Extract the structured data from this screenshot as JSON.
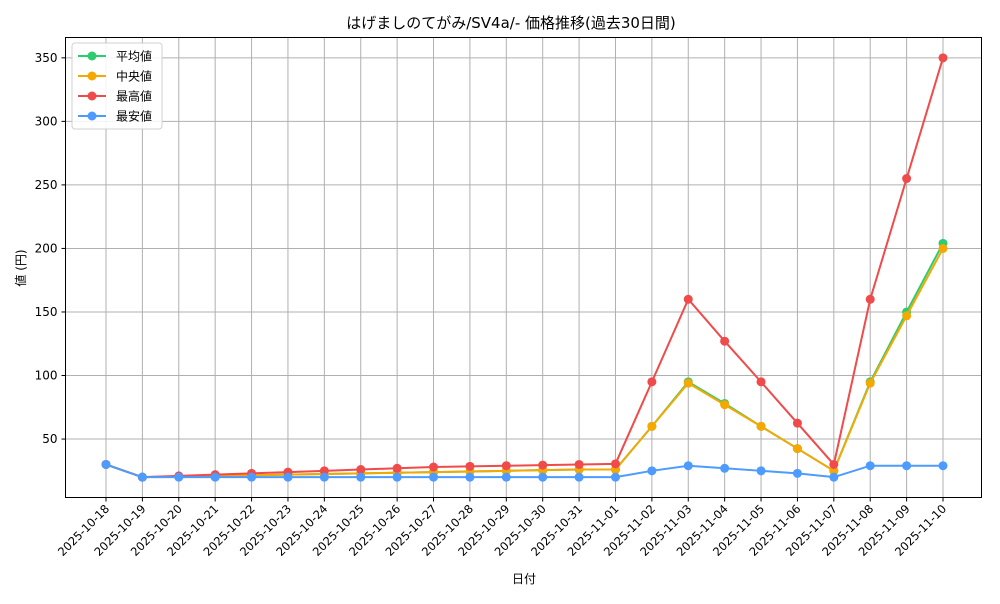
{
  "chart_data": {
    "type": "line",
    "title": "はげましのてがみ/SV4a/- 価格推移(過去30日間)",
    "xlabel": "日付",
    "ylabel": "値 (円)",
    "ylim": [
      4,
      366
    ],
    "yticks": [
      50,
      100,
      150,
      200,
      250,
      300,
      350
    ],
    "grid": true,
    "legend_position": "upper left",
    "categories": [
      "2025-10-18",
      "2025-10-19",
      "2025-10-20",
      "2025-10-21",
      "2025-10-22",
      "2025-10-23",
      "2025-10-24",
      "2025-10-25",
      "2025-10-26",
      "2025-10-27",
      "2025-10-28",
      "2025-10-29",
      "2025-10-30",
      "2025-10-31",
      "2025-11-01",
      "2025-11-02",
      "2025-11-03",
      "2025-11-04",
      "2025-11-05",
      "2025-11-06",
      "2025-11-07",
      "2025-11-08",
      "2025-11-09",
      "2025-11-10"
    ],
    "series": [
      {
        "name": "平均値",
        "color": "#2ecc71",
        "values": [
          30,
          20,
          20.5,
          21,
          21.5,
          22,
          22.5,
          23,
          23.5,
          24,
          24.5,
          25,
          25.5,
          26,
          26,
          60,
          95,
          78,
          60,
          42.5,
          25,
          95,
          150,
          204
        ]
      },
      {
        "name": "中央値",
        "color": "#f5a800",
        "values": [
          30,
          20,
          20.5,
          21,
          21.5,
          22,
          22.5,
          23,
          23.5,
          24,
          24.5,
          25,
          25.5,
          26,
          26,
          60,
          94,
          77,
          60,
          42.5,
          25,
          94,
          147,
          200
        ]
      },
      {
        "name": "最高値",
        "color": "#f04a4a",
        "values": [
          30,
          20,
          21,
          22,
          23,
          24,
          25,
          26,
          27,
          28,
          28.5,
          29,
          29.5,
          30,
          30.5,
          95,
          160,
          127,
          95,
          62.5,
          30,
          160,
          255,
          350
        ]
      },
      {
        "name": "最安値",
        "color": "#4d9bff",
        "values": [
          30,
          20,
          20,
          20,
          20,
          20,
          20,
          20,
          20,
          20,
          20,
          20,
          20,
          20,
          20,
          25,
          29,
          27,
          25,
          23,
          20,
          29,
          29,
          29
        ]
      }
    ]
  }
}
